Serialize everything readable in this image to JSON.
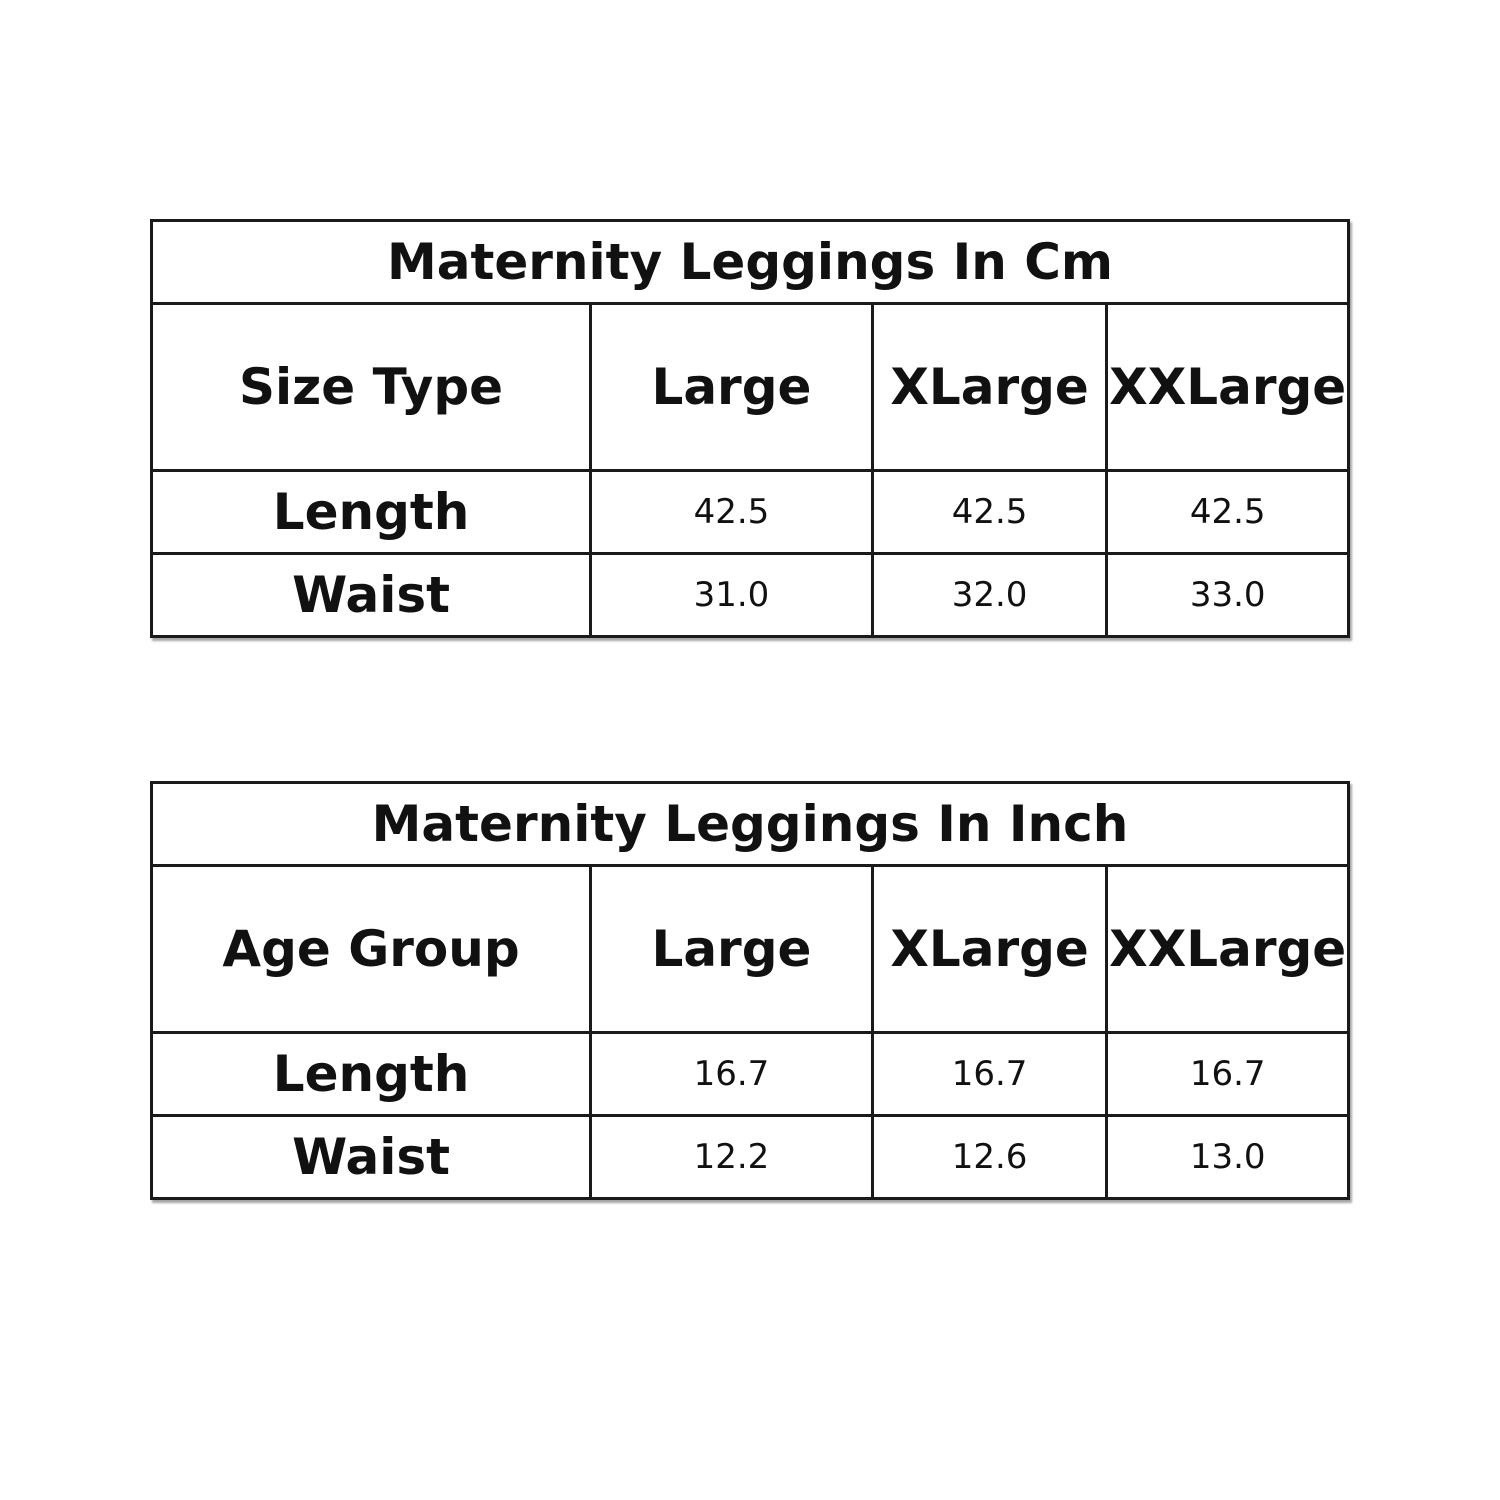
{
  "tables": [
    {
      "title": "Maternity Leggings In Cm",
      "header": [
        "Size Type",
        "Large",
        "XLarge",
        "XXLarge"
      ],
      "rows": [
        {
          "label": "Length",
          "values": [
            "42.5",
            "42.5",
            "42.5"
          ]
        },
        {
          "label": "Waist",
          "values": [
            "31.0",
            "32.0",
            "33.0"
          ]
        }
      ]
    },
    {
      "title": "Maternity Leggings In Inch",
      "header": [
        "Age Group",
        "Large",
        "XLarge",
        "XXLarge"
      ],
      "rows": [
        {
          "label": "Length",
          "values": [
            "16.7",
            "16.7",
            "16.7"
          ]
        },
        {
          "label": "Waist",
          "values": [
            "12.2",
            "12.6",
            "13.0"
          ]
        }
      ]
    }
  ]
}
